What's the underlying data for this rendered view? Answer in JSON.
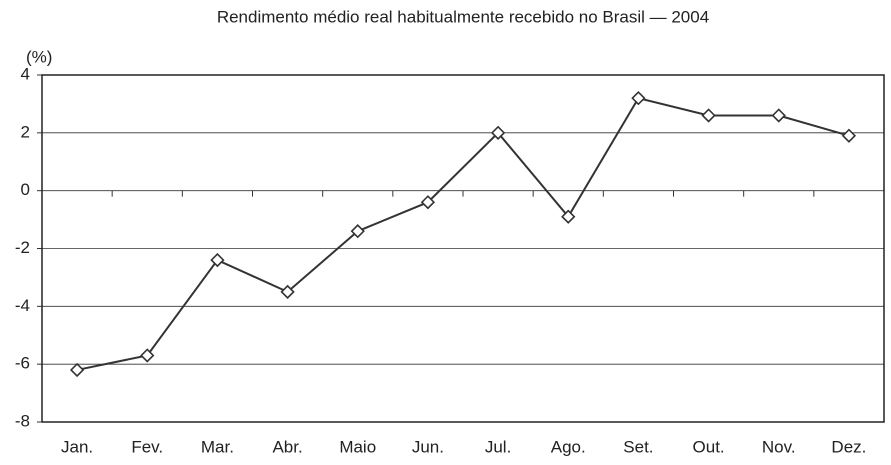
{
  "chart_data": {
    "type": "line",
    "title": "Rendimento médio real habitualmente recebido no Brasil — 2004",
    "y_label": "(%)",
    "categories": [
      "Jan.",
      "Fev.",
      "Mar.",
      "Abr.",
      "Maio",
      "Jun.",
      "Jul.",
      "Ago.",
      "Set.",
      "Out.",
      "Nov.",
      "Dez."
    ],
    "values": [
      -6.2,
      -5.7,
      -2.4,
      -3.5,
      -1.4,
      -0.4,
      2.0,
      -0.9,
      3.2,
      2.6,
      2.6,
      1.9
    ],
    "color": "#333333",
    "ylim": [
      -8,
      4
    ],
    "yticks": [
      -8,
      -6,
      -4,
      -2,
      0,
      2,
      4
    ],
    "grid": true
  }
}
